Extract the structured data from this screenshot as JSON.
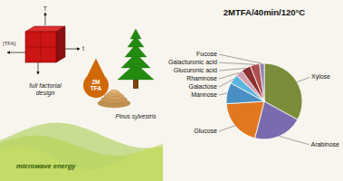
{
  "chart_data": {
    "type": "pie",
    "title": "2MTFA/40min/120°C",
    "categories": [
      "Xylose",
      "Arabinose",
      "Glucose",
      "Mannose",
      "Galactose",
      "Rhamnose",
      "Glucuronic acid",
      "Galacturonic acid",
      "Fucose"
    ],
    "values": [
      33,
      21,
      20,
      9,
      4,
      3,
      4,
      4,
      2
    ],
    "colors": [
      "#7B8C3A",
      "#7B6BAE",
      "#E07820",
      "#4A8FC4",
      "#5BB5DC",
      "#D4A0B0",
      "#8B3030",
      "#B05050",
      "#9080B0"
    ],
    "annotations": [
      "microwave energy",
      "full factorial\ndesign",
      "2M\nTFA",
      "Pinus sylvestris",
      "[TFA]",
      "t",
      "T"
    ]
  }
}
